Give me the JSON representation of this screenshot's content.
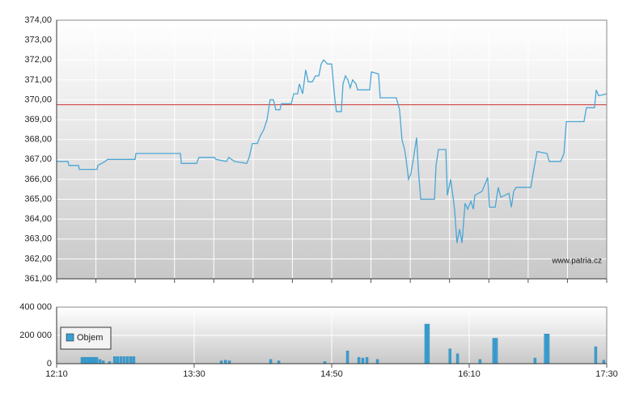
{
  "chart_data": [
    {
      "type": "line",
      "x": [
        730,
        736.6,
        737.1,
        742.7,
        743.2,
        753.5,
        754,
        758.2,
        759.6,
        775.6,
        776.1,
        802,
        802.5,
        811.4,
        812.8,
        821.8,
        822.7,
        828.8,
        830.2,
        833.5,
        840.6,
        842,
        843.9,
        846.7,
        848.6,
        850.5,
        852.4,
        854.2,
        856.1,
        857.5,
        859.9,
        860.8,
        866.5,
        867.9,
        870.2,
        871.2,
        873.1,
        874.9,
        876.4,
        878.7,
        880.6,
        882.5,
        883.9,
        885.3,
        887.6,
        890,
        891.9,
        892.8,
        895.6,
        896.6,
        898,
        899.4,
        900.8,
        902.2,
        904.1,
        905.1,
        912.1,
        913.1,
        917.3,
        918.2,
        927.6,
        929.5,
        930.9,
        932.4,
        933.3,
        934.7,
        936.1,
        937.5,
        939.4,
        940.4,
        941.8,
        949.8,
        950.7,
        952.1,
        956.4,
        957.3,
        959.2,
        961.5,
        962.9,
        964.4,
        965.8,
        967.6,
        969.1,
        971,
        972.4,
        973.3,
        977.5,
        979.4,
        980.8,
        981.8,
        985.1,
        986.9,
        988.4,
        993.1,
        994.5,
        995.9,
        997.3,
        1005.8,
        1007.6,
        1009.5,
        1015.2,
        1016.6,
        1023.2,
        1025.1,
        1026.5,
        1036.8,
        1038.2,
        1042.9,
        1043.9,
        1045.3,
        1050
      ],
      "values": [
        366.9,
        366.9,
        366.7,
        366.7,
        366.5,
        366.5,
        366.7,
        366.9,
        367.0,
        367.0,
        367.3,
        367.3,
        366.8,
        366.8,
        367.1,
        367.1,
        367.0,
        366.9,
        367.1,
        366.9,
        366.8,
        367.1,
        367.8,
        367.8,
        368.2,
        368.5,
        369.0,
        370.0,
        370.0,
        369.5,
        369.5,
        369.8,
        369.8,
        370.3,
        370.3,
        370.8,
        370.3,
        371.5,
        370.9,
        370.9,
        371.2,
        371.2,
        371.8,
        372.0,
        371.8,
        371.8,
        370.0,
        369.4,
        369.4,
        370.8,
        371.2,
        371.0,
        370.6,
        371.0,
        370.8,
        370.5,
        370.5,
        371.4,
        371.3,
        370.1,
        370.1,
        369.5,
        368.0,
        367.5,
        367.0,
        366.0,
        366.3,
        367.0,
        368.1,
        366.5,
        365.0,
        365.0,
        366.7,
        367.5,
        367.5,
        365.2,
        366.0,
        364.5,
        362.8,
        363.5,
        362.8,
        364.8,
        364.5,
        364.9,
        364.5,
        365.2,
        365.4,
        365.8,
        366.1,
        364.6,
        364.6,
        365.6,
        365.1,
        365.3,
        364.6,
        365.4,
        365.6,
        365.6,
        366.5,
        367.4,
        367.3,
        366.9,
        366.9,
        367.3,
        368.9,
        368.9,
        369.6,
        369.6,
        370.5,
        370.2,
        370.3
      ],
      "color": "#4ba6d6",
      "reference_line": {
        "value": 369.75,
        "color": "#cc3333"
      },
      "annotation": "www.patria.cz",
      "xlim": [
        730,
        1050
      ],
      "ylim": [
        361,
        374
      ],
      "yticks": [
        {
          "value": 361,
          "label": "361,00"
        },
        {
          "value": 362,
          "label": "362,00"
        },
        {
          "value": 363,
          "label": "363,00"
        },
        {
          "value": 364,
          "label": "364,00"
        },
        {
          "value": 365,
          "label": "365,00"
        },
        {
          "value": 366,
          "label": "366,00"
        },
        {
          "value": 367,
          "label": "367,00"
        },
        {
          "value": 368,
          "label": "368,00"
        },
        {
          "value": 369,
          "label": "369,00"
        },
        {
          "value": 370,
          "label": "370,00"
        },
        {
          "value": 371,
          "label": "371,00"
        },
        {
          "value": 372,
          "label": "372,00"
        },
        {
          "value": 373,
          "label": "373,00"
        },
        {
          "value": 374,
          "label": "374,00"
        }
      ],
      "grid": true
    },
    {
      "type": "bar",
      "x": [
        744.1,
        745.5,
        746.9,
        748.4,
        749.8,
        751.2,
        752.6,
        754.5,
        756.4,
        760.1,
        763,
        764.8,
        766.7,
        768.6,
        770.5,
        772.4,
        774.2,
        825.1,
        827.5,
        829.8,
        853.8,
        858.5,
        885.3,
        898.5,
        905.1,
        907.4,
        909.8,
        915.9,
        944.1,
        945.5,
        958.1,
        962.5,
        975.6,
        983.6,
        985.1,
        1007.6,
        1013.6,
        1015.2,
        1042.9,
        1047.6
      ],
      "series": [
        {
          "name": "Objem",
          "color": "#3a9fd2",
          "values": [
            45000,
            45000,
            45000,
            45000,
            45000,
            45000,
            45000,
            30000,
            20000,
            15000,
            50000,
            50000,
            50000,
            50000,
            50000,
            50000,
            50000,
            20000,
            25000,
            20000,
            30000,
            20000,
            15000,
            90000,
            45000,
            40000,
            45000,
            30000,
            280000,
            280000,
            105000,
            70000,
            30000,
            180000,
            180000,
            40000,
            210000,
            210000,
            120000,
            25000
          ]
        }
      ],
      "xlim": [
        730,
        1050
      ],
      "xticks": [
        {
          "value": 730,
          "label": "12:10"
        },
        {
          "value": 810,
          "label": "13:30"
        },
        {
          "value": 890,
          "label": "14:50"
        },
        {
          "value": 970,
          "label": "16:10"
        },
        {
          "value": 1050,
          "label": "17:30"
        }
      ],
      "ylim": [
        0,
        400000
      ],
      "yticks": [
        0,
        {
          "value": 200000,
          "label": "200 000"
        },
        {
          "value": 400000,
          "label": "400 000"
        }
      ],
      "grid": true
    }
  ]
}
